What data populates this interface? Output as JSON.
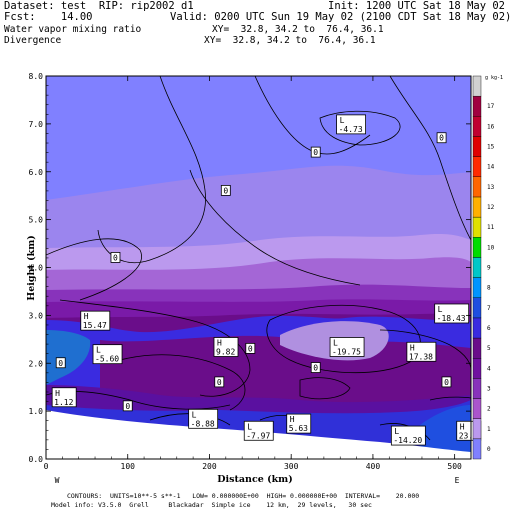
{
  "header": {
    "dataset": "Dataset: test  RIP: rip2002 d1",
    "init": "Init: 1200 UTC Sat 18 May 02",
    "fcst": "Fcst:    14.00",
    "valid": "Valid: 0200 UTC Sun 19 May 02 (2100 CDT Sat 18 May 02)",
    "field1": "Water vapor mixing ratio",
    "xy1": "XY=  32.8, 34.2 to  76.4, 36.1",
    "field2": "Divergence",
    "xy2": "XY=  32.8, 34.2 to  76.4, 36.1"
  },
  "footer": {
    "line1": "CONTOURS:  UNITS=10**-5 s**-1   LOW= 0.000000E+00  HIGH= 0.000000E+00  INTERVAL=    20.000",
    "line2": "Model info: V3.5.0  Grell     Blackadar  Simple ice    12 km,  29 levels,   30 sec"
  },
  "chart_data": {
    "type": "cross-section",
    "xlabel": "Distance (km)",
    "ylabel": "Height (km)",
    "xlim": [
      0,
      520
    ],
    "ylim": [
      0,
      8
    ],
    "x_ticks": [
      "0",
      "100",
      "200",
      "300",
      "400",
      "500"
    ],
    "y_ticks": [
      "0.0",
      "1.0",
      "2.0",
      "3.0",
      "4.0",
      "5.0",
      "6.0",
      "7.0",
      "8.0"
    ],
    "x_end_labels": {
      "left": "W",
      "right": "E"
    },
    "colorbar": {
      "unit_label": "g kg-1",
      "levels": [
        "0",
        "1",
        "2",
        "3",
        "4",
        "5",
        "6",
        "7",
        "8",
        "9",
        "10",
        "11",
        "12",
        "13",
        "14",
        "15",
        "16",
        "17",
        "18"
      ],
      "colors": [
        "#8080ff",
        "#bb99ee",
        "#aa55cc",
        "#8833bb",
        "#7011a0",
        "#6a0d8a",
        "#3a2be0",
        "#1f4fe0",
        "#0095ff",
        "#00c8c8",
        "#00dd00",
        "#e0e000",
        "#ffb000",
        "#ff6600",
        "#ff2a00",
        "#e00000",
        "#c00030",
        "#a00040",
        "#d0d0d0"
      ]
    },
    "contour_labels": [
      {
        "text": "0",
        "x": 330,
        "y": 6.4
      },
      {
        "text": "0",
        "x": 484,
        "y": 6.7
      },
      {
        "text": "0",
        "x": 220,
        "y": 5.6
      },
      {
        "text": "0",
        "x": 85,
        "y": 4.2
      },
      {
        "text": "0",
        "x": 18,
        "y": 2.0
      },
      {
        "text": "0",
        "x": 212,
        "y": 1.6
      },
      {
        "text": "0",
        "x": 330,
        "y": 1.9
      },
      {
        "text": "0",
        "x": 490,
        "y": 1.6
      },
      {
        "text": "0",
        "x": 250,
        "y": 2.3
      },
      {
        "text": "0",
        "x": 100,
        "y": 1.1
      }
    ],
    "extrema": [
      {
        "type": "L",
        "value": "-4.73",
        "x": 358,
        "y": 7.0
      },
      {
        "type": "H",
        "value": "15.47",
        "x": 45,
        "y": 2.9
      },
      {
        "type": "L",
        "value": "-5.60",
        "x": 60,
        "y": 2.2
      },
      {
        "type": "H",
        "value": "9.82",
        "x": 208,
        "y": 2.35
      },
      {
        "type": "L",
        "value": "-19.75",
        "x": 350,
        "y": 2.35
      },
      {
        "type": "H",
        "value": "17.38",
        "x": 444,
        "y": 2.25
      },
      {
        "type": "L",
        "value": "-18.43",
        "x": 478,
        "y": 3.05
      },
      {
        "type": "L",
        "value": "-8.88",
        "x": 177,
        "y": 0.85
      },
      {
        "type": "L",
        "value": "-7.97",
        "x": 245,
        "y": 0.6
      },
      {
        "type": "H",
        "value": "5.63",
        "x": 297,
        "y": 0.75
      },
      {
        "type": "L",
        "value": "-14.20",
        "x": 425,
        "y": 0.5
      },
      {
        "type": "H",
        "value": "1.12",
        "x": 10,
        "y": 1.3
      },
      {
        "type": "H",
        "value": "23.0",
        "x": 505,
        "y": 0.6
      }
    ]
  }
}
